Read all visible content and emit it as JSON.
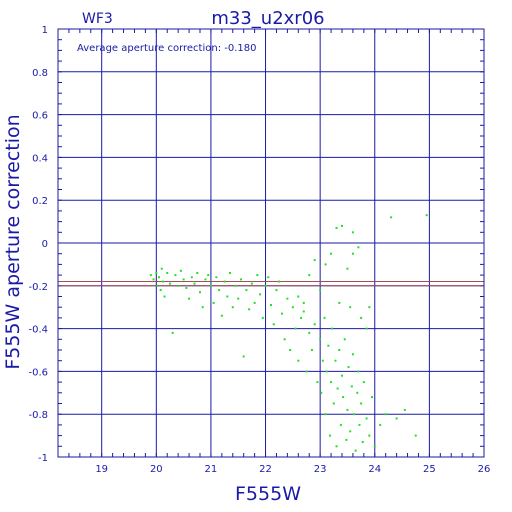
{
  "header": {
    "chip": "WF3",
    "title": "m33_u2xr06"
  },
  "annotation": "Average aperture correction: -0.180",
  "chart_data": {
    "type": "scatter",
    "xlabel": "F555W",
    "ylabel": "F555W aperture correction",
    "xlim": [
      18.2,
      26
    ],
    "ylim": [
      -1,
      1
    ],
    "xticks": [
      19,
      20,
      21,
      22,
      23,
      24,
      25,
      26
    ],
    "yticks": [
      -1,
      -0.8,
      -0.6,
      -0.4,
      -0.2,
      0,
      0.2,
      0.4,
      0.6,
      0.8,
      1
    ],
    "grid": true,
    "reference_lines": [
      {
        "y": -0.18,
        "color": "#a05050"
      },
      {
        "y": -0.2,
        "color": "#a05050"
      }
    ],
    "colors": {
      "axes": "#1a1aa8",
      "points": "#22e022"
    },
    "series": [
      {
        "points": [
          [
            19.9,
            -0.15
          ],
          [
            19.95,
            -0.17
          ],
          [
            20.0,
            -0.14
          ],
          [
            20.02,
            -0.2
          ],
          [
            20.05,
            -0.16
          ],
          [
            20.08,
            -0.22
          ],
          [
            20.1,
            -0.12
          ],
          [
            20.12,
            -0.18
          ],
          [
            20.15,
            -0.25
          ],
          [
            20.2,
            -0.14
          ],
          [
            20.25,
            -0.19
          ],
          [
            20.3,
            -0.42
          ],
          [
            20.35,
            -0.15
          ],
          [
            20.4,
            -0.2
          ],
          [
            20.45,
            -0.13
          ],
          [
            20.5,
            -0.17
          ],
          [
            20.55,
            -0.21
          ],
          [
            20.6,
            -0.26
          ],
          [
            20.65,
            -0.16
          ],
          [
            20.7,
            -0.19
          ],
          [
            20.75,
            -0.14
          ],
          [
            20.8,
            -0.23
          ],
          [
            20.85,
            -0.3
          ],
          [
            20.9,
            -0.17
          ],
          [
            20.95,
            -0.15
          ],
          [
            21.0,
            -0.2
          ],
          [
            21.05,
            -0.28
          ],
          [
            21.1,
            -0.16
          ],
          [
            21.15,
            -0.22
          ],
          [
            21.2,
            -0.34
          ],
          [
            21.25,
            -0.18
          ],
          [
            21.3,
            -0.25
          ],
          [
            21.35,
            -0.14
          ],
          [
            21.4,
            -0.3
          ],
          [
            21.45,
            -0.2
          ],
          [
            21.5,
            -0.26
          ],
          [
            21.55,
            -0.17
          ],
          [
            21.6,
            -0.53
          ],
          [
            21.65,
            -0.22
          ],
          [
            21.7,
            -0.31
          ],
          [
            21.75,
            -0.19
          ],
          [
            21.8,
            -0.28
          ],
          [
            21.85,
            -0.15
          ],
          [
            21.9,
            -0.24
          ],
          [
            21.95,
            -0.35
          ],
          [
            22.0,
            -0.2
          ],
          [
            22.05,
            -0.16
          ],
          [
            22.1,
            -0.29
          ],
          [
            22.15,
            -0.38
          ],
          [
            22.2,
            -0.22
          ],
          [
            22.25,
            -0.18
          ],
          [
            22.3,
            -0.33
          ],
          [
            22.35,
            -0.45
          ],
          [
            22.4,
            -0.26
          ],
          [
            22.45,
            -0.5
          ],
          [
            22.5,
            -0.3
          ],
          [
            22.55,
            -0.4
          ],
          [
            22.6,
            -0.55
          ],
          [
            22.65,
            -0.35
          ],
          [
            22.7,
            -0.28
          ],
          [
            22.75,
            -0.6
          ],
          [
            22.8,
            -0.42
          ],
          [
            22.85,
            -0.5
          ],
          [
            22.9,
            -0.38
          ],
          [
            22.95,
            -0.65
          ],
          [
            23.0,
            -0.45
          ],
          [
            23.02,
            -0.7
          ],
          [
            23.05,
            -0.55
          ],
          [
            23.08,
            -0.35
          ],
          [
            23.1,
            -0.8
          ],
          [
            23.12,
            -0.6
          ],
          [
            23.15,
            -0.48
          ],
          [
            23.18,
            -0.9
          ],
          [
            23.2,
            -0.65
          ],
          [
            23.22,
            -0.4
          ],
          [
            23.25,
            -0.75
          ],
          [
            23.28,
            -0.55
          ],
          [
            23.3,
            -0.95
          ],
          [
            23.32,
            -0.68
          ],
          [
            23.35,
            -0.5
          ],
          [
            23.38,
            -0.85
          ],
          [
            23.4,
            -0.62
          ],
          [
            23.42,
            -0.72
          ],
          [
            23.45,
            -0.45
          ],
          [
            23.48,
            -0.92
          ],
          [
            23.5,
            -0.78
          ],
          [
            23.52,
            -0.58
          ],
          [
            23.55,
            -0.88
          ],
          [
            23.58,
            -0.67
          ],
          [
            23.6,
            -0.52
          ],
          [
            23.62,
            -0.8
          ],
          [
            23.65,
            -0.97
          ],
          [
            23.68,
            -0.7
          ],
          [
            23.7,
            -0.6
          ],
          [
            23.72,
            -0.85
          ],
          [
            23.75,
            -0.75
          ],
          [
            23.78,
            -0.93
          ],
          [
            23.8,
            -0.65
          ],
          [
            23.85,
            -0.82
          ],
          [
            23.9,
            -0.9
          ],
          [
            23.95,
            -0.72
          ],
          [
            24.0,
            -0.95
          ],
          [
            24.1,
            -0.85
          ],
          [
            24.2,
            -0.8
          ],
          [
            24.4,
            -0.82
          ],
          [
            24.55,
            -0.78
          ],
          [
            24.75,
            -0.9
          ],
          [
            23.3,
            0.07
          ],
          [
            23.4,
            0.08
          ],
          [
            23.6,
            0.05
          ],
          [
            23.7,
            -0.02
          ],
          [
            24.3,
            0.12
          ],
          [
            24.95,
            0.13
          ],
          [
            23.1,
            -0.1
          ],
          [
            23.2,
            -0.05
          ],
          [
            22.9,
            -0.08
          ],
          [
            23.5,
            -0.12
          ],
          [
            23.6,
            -0.05
          ],
          [
            22.8,
            -0.15
          ],
          [
            23.0,
            -0.22
          ],
          [
            23.35,
            -0.28
          ],
          [
            23.55,
            -0.3
          ],
          [
            23.75,
            -0.35
          ],
          [
            23.85,
            -0.4
          ],
          [
            22.6,
            -0.25
          ],
          [
            22.7,
            -0.32
          ],
          [
            23.9,
            -0.3
          ]
        ]
      }
    ]
  }
}
